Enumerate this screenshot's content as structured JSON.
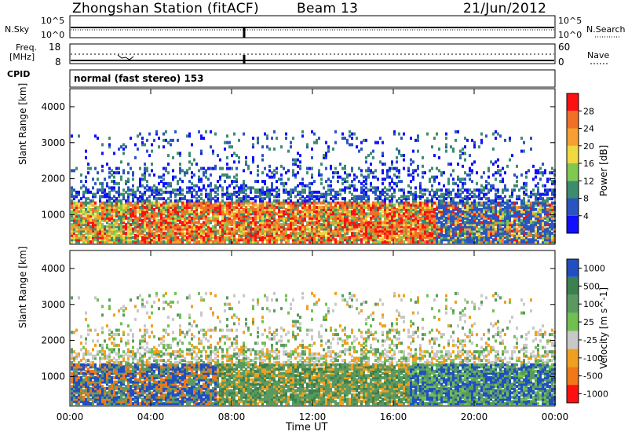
{
  "header": {
    "station": "Zhongshan Station (fitACF)",
    "beam": "Beam 13",
    "date": "21/Jun/2012"
  },
  "nsky_panel": {
    "left_label": "N.Sky",
    "left_ticks": [
      "10^5",
      "10^0"
    ],
    "right_ticks": [
      "10^5",
      "10^0"
    ],
    "right_label": "N.Search"
  },
  "freq_panel": {
    "left_label_1": "Freq.",
    "left_label_2": "[MHz]",
    "left_ticks": [
      "18",
      "8"
    ],
    "right_ticks": [
      "60",
      "0"
    ],
    "right_label": "Nave"
  },
  "cpid": {
    "label": "CPID",
    "value": "normal (fast stereo) 153"
  },
  "x_axis": {
    "label": "Time UT",
    "ticks": [
      "00:00",
      "04:00",
      "08:00",
      "12:00",
      "16:00",
      "20:00",
      "00:00"
    ]
  },
  "chart_data": [
    {
      "type": "heatmap",
      "quantity": "power",
      "ylabel": "Slant Range [km]",
      "xlabel": "Time UT",
      "ylim": [
        180,
        4500
      ],
      "yticks": [
        1000,
        2000,
        3000,
        4000
      ],
      "xlim": [
        0,
        24
      ],
      "colorbar": {
        "label": "Power [dB]",
        "ticks": [
          "4",
          "8",
          "12",
          "16",
          "20",
          "24",
          "28"
        ],
        "colors": [
          "#1010ff",
          "#2a55c0",
          "#3c8c70",
          "#80c850",
          "#f0d840",
          "#f5a030",
          "#f07028",
          "#ff1010"
        ]
      }
    },
    {
      "type": "heatmap",
      "quantity": "velocity",
      "ylabel": "Slant Range [km]",
      "xlabel": "Time UT",
      "ylim": [
        180,
        4500
      ],
      "yticks": [
        1000,
        2000,
        3000,
        4000
      ],
      "xlim": [
        0,
        24
      ],
      "colorbar": {
        "label": "Velocity [m s^-1]",
        "ticks": [
          "1000",
          "500",
          "100",
          "25",
          "-25",
          "-100",
          "-500",
          "-1000"
        ],
        "colors": [
          "#2050c0",
          "#3c8050",
          "#5a9a60",
          "#70c050",
          "#c8c8c8",
          "#f0a020",
          "#f07818",
          "#ff1010"
        ]
      }
    }
  ]
}
